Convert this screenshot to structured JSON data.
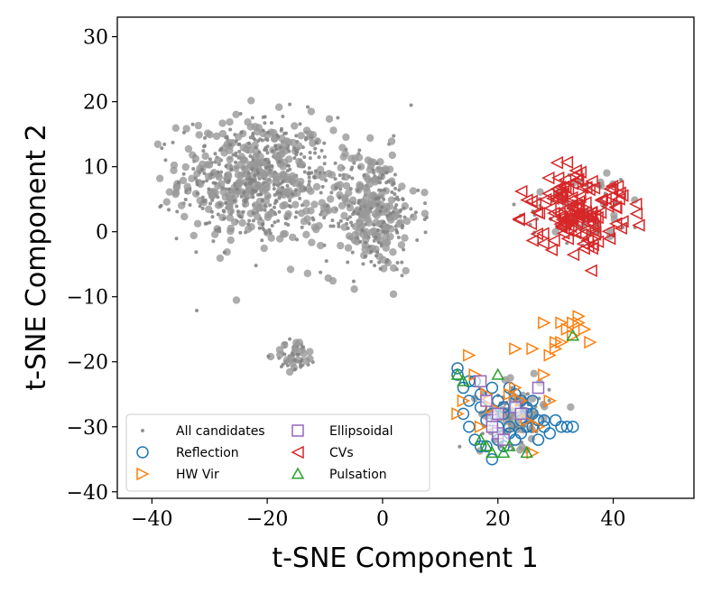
{
  "chart_data": {
    "type": "scatter",
    "title": "",
    "xlabel": "t-SNE Component 1",
    "ylabel": "t-SNE Component 2",
    "xlim": [
      -46,
      54
    ],
    "ylim": [
      -41,
      33
    ],
    "xticks": [
      -40,
      -20,
      0,
      20,
      40
    ],
    "yticks": [
      -40,
      -30,
      -20,
      -10,
      0,
      10,
      20,
      30
    ],
    "xtick_labels": [
      "−40",
      "−20",
      "0",
      "20",
      "40"
    ],
    "ytick_labels": [
      "−40",
      "−30",
      "−20",
      "−10",
      "0",
      "10",
      "20",
      "30"
    ],
    "grid": false,
    "legend_position": "lower-left",
    "legend_columns": 2,
    "series": [
      {
        "name": "All candidates",
        "marker": "dot",
        "color": "#808080",
        "clusters": [
          {
            "center": [
              -22,
              8
            ],
            "spread": [
              11,
              8
            ],
            "n": 700
          },
          {
            "center": [
              -2,
              3
            ],
            "spread": [
              7,
              8
            ],
            "n": 350
          },
          {
            "center": [
              -15,
              -19
            ],
            "spread": [
              3,
              2
            ],
            "n": 60
          },
          {
            "center": [
              35,
              4
            ],
            "spread": [
              9,
              5
            ],
            "n": 60
          },
          {
            "center": [
              23,
              -28
            ],
            "spread": [
              5,
              4
            ],
            "n": 120
          }
        ]
      },
      {
        "name": "Reflection",
        "marker": "circle",
        "color": "#1f77b4",
        "points": [
          [
            13,
            -22
          ],
          [
            14,
            -24
          ],
          [
            15,
            -26
          ],
          [
            16,
            -23
          ],
          [
            17,
            -27
          ],
          [
            18,
            -29
          ],
          [
            19,
            -28
          ],
          [
            20,
            -30
          ],
          [
            21,
            -28
          ],
          [
            22,
            -31
          ],
          [
            23,
            -27
          ],
          [
            24,
            -29
          ],
          [
            25,
            -30
          ],
          [
            26,
            -28
          ],
          [
            27,
            -32
          ],
          [
            28,
            -30
          ],
          [
            29,
            -31
          ],
          [
            30,
            -29
          ],
          [
            31,
            -30
          ],
          [
            32,
            -30
          ],
          [
            33,
            -30
          ],
          [
            18,
            -33
          ],
          [
            19,
            -35
          ],
          [
            20,
            -32
          ],
          [
            21,
            -33
          ],
          [
            22,
            -30
          ],
          [
            23,
            -32
          ],
          [
            24,
            -31
          ],
          [
            25,
            -28
          ],
          [
            26,
            -30
          ],
          [
            27,
            -29
          ],
          [
            28,
            -29
          ],
          [
            14,
            -28
          ],
          [
            15,
            -30
          ],
          [
            16,
            -32
          ],
          [
            17,
            -33
          ],
          [
            22,
            -24
          ],
          [
            23,
            -25
          ],
          [
            24,
            -26
          ],
          [
            25,
            -27
          ],
          [
            26,
            -26
          ],
          [
            19,
            -24
          ],
          [
            20,
            -26
          ],
          [
            21,
            -27
          ],
          [
            13,
            -21
          ],
          [
            15,
            -23
          ],
          [
            17,
            -25
          ]
        ]
      },
      {
        "name": "HW Vir",
        "marker": "triangle-right",
        "color": "#ff7f0e",
        "points": [
          [
            13,
            -28
          ],
          [
            14,
            -26
          ],
          [
            15,
            -19
          ],
          [
            16,
            -22
          ],
          [
            17,
            -30
          ],
          [
            18,
            -25
          ],
          [
            19,
            -27
          ],
          [
            22,
            -25
          ],
          [
            23,
            -24
          ],
          [
            24,
            -26
          ],
          [
            25,
            -29
          ],
          [
            26,
            -34
          ],
          [
            27,
            -30
          ],
          [
            28,
            -22
          ],
          [
            29,
            -19
          ],
          [
            30,
            -18
          ],
          [
            31,
            -17
          ],
          [
            32,
            -15
          ],
          [
            33,
            -16
          ],
          [
            34,
            -14
          ],
          [
            35,
            -15
          ],
          [
            36,
            -17
          ],
          [
            28,
            -14
          ],
          [
            31,
            -14
          ],
          [
            34,
            -13
          ],
          [
            23,
            -18
          ],
          [
            26,
            -18
          ],
          [
            29,
            -26
          ],
          [
            30,
            -17
          ],
          [
            33,
            -14
          ]
        ]
      },
      {
        "name": "Ellipsoidal",
        "marker": "square",
        "color": "#9467bd",
        "points": [
          [
            17,
            -23
          ],
          [
            18,
            -26
          ],
          [
            19,
            -29
          ],
          [
            20,
            -31
          ],
          [
            21,
            -32
          ],
          [
            23,
            -27
          ],
          [
            24,
            -28
          ],
          [
            27,
            -24
          ],
          [
            19,
            -30
          ],
          [
            20,
            -28
          ]
        ]
      },
      {
        "name": "CVs",
        "marker": "triangle-left",
        "color": "#d62728",
        "clusters": [
          {
            "center": [
              34,
              3
            ],
            "spread": [
              7,
              5
            ],
            "n": 140
          }
        ]
      },
      {
        "name": "Pulsation",
        "marker": "triangle-up",
        "color": "#2ca02c",
        "points": [
          [
            13,
            -22
          ],
          [
            14,
            -23
          ],
          [
            18,
            -33
          ],
          [
            20,
            -22
          ],
          [
            21,
            -34
          ],
          [
            25,
            -34
          ],
          [
            33,
            -16
          ],
          [
            17,
            -32
          ],
          [
            19,
            -34
          ],
          [
            22,
            -33
          ]
        ]
      }
    ]
  }
}
